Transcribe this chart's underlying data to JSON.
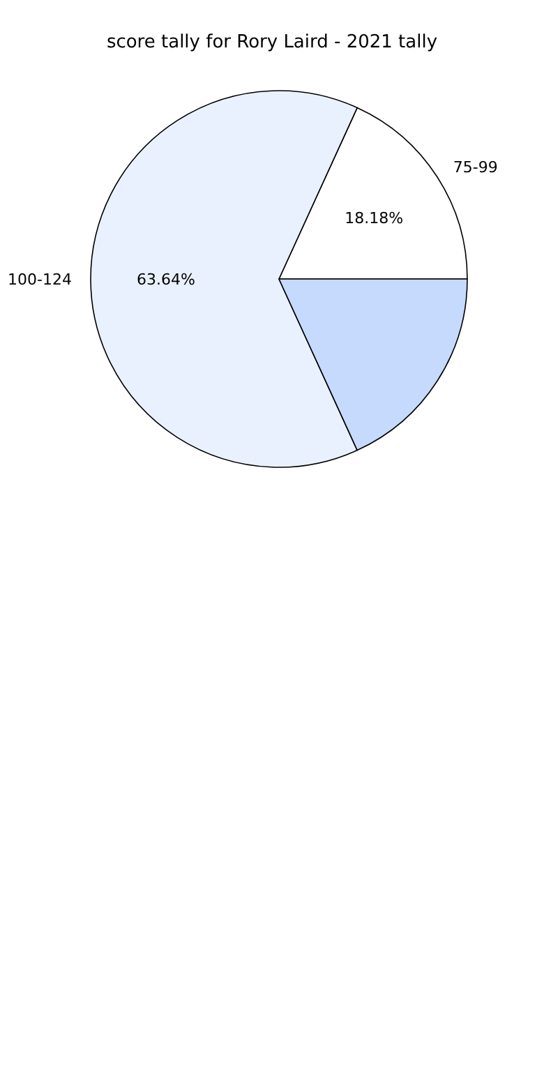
{
  "chart_data": {
    "type": "pie",
    "title": "score tally for Rory Laird - 2021 tally",
    "categories": [
      "75-99",
      "100-124",
      null
    ],
    "values": [
      18.18,
      63.64,
      18.18
    ],
    "colors": [
      "#ffffff",
      "#eaf1fe",
      "#c5dafd"
    ],
    "value_labels": [
      "18.18%",
      "63.64%",
      null
    ]
  }
}
